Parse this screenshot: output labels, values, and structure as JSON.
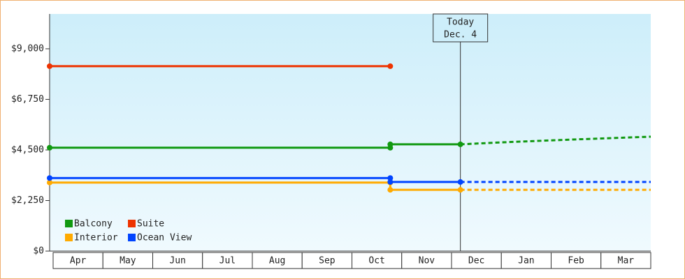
{
  "chart_data": {
    "type": "line",
    "xlim": [
      0,
      12
    ],
    "categories": [
      "Apr",
      "May",
      "Jun",
      "Jul",
      "Aug",
      "Sep",
      "Oct",
      "Nov",
      "Dec",
      "Jan",
      "Feb",
      "Mar"
    ],
    "ylim": [
      0,
      10550
    ],
    "yticks": [
      {
        "value": 0,
        "label": "$0"
      },
      {
        "value": 2250,
        "label": "$2,250"
      },
      {
        "value": 4500,
        "label": "$4,500"
      },
      {
        "value": 6750,
        "label": "$6,750"
      },
      {
        "value": 9000,
        "label": "$9,000"
      }
    ],
    "today": {
      "x": 8.2,
      "label": "Today",
      "date": "Dec. 4"
    },
    "series": [
      {
        "name": "Balcony",
        "color": "#119911",
        "x": [
          0,
          6.8,
          6.8,
          8.2
        ],
        "values": [
          4600,
          4600,
          4750,
          4750
        ],
        "forecast_x": [
          8.2,
          9.05,
          10.45,
          12
        ],
        "forecast_values": [
          4750,
          4840,
          4965,
          5090
        ]
      },
      {
        "name": "Suite",
        "color": "#ee3300",
        "x": [
          0,
          6.8
        ],
        "values": [
          8225,
          8225
        ]
      },
      {
        "name": "Interior",
        "color": "#ffaa00",
        "x": [
          0,
          6.8,
          6.8,
          8.2
        ],
        "values": [
          3050,
          3050,
          2725,
          2725
        ],
        "forecast_x": [
          8.2,
          12
        ],
        "forecast_values": [
          2725,
          2725
        ]
      },
      {
        "name": "Ocean View",
        "color": "#0044ff",
        "x": [
          0,
          6.8,
          6.8,
          8.2
        ],
        "values": [
          3250,
          3250,
          3075,
          3075
        ],
        "forecast_x": [
          8.2,
          12
        ],
        "forecast_values": [
          3075,
          3075
        ]
      }
    ]
  }
}
